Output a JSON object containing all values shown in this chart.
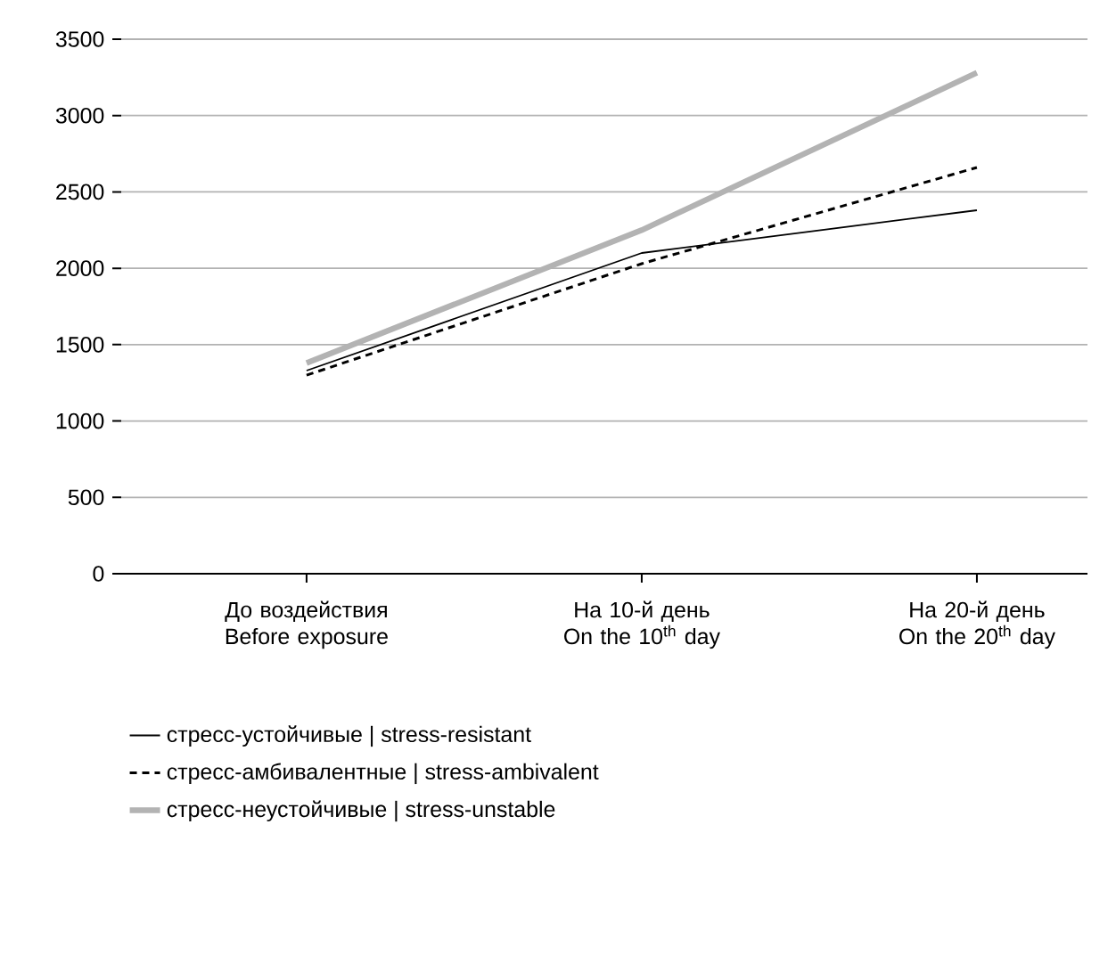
{
  "chart_data": {
    "type": "line",
    "categories": [
      "До воздействия Before exposure",
      "На 10-й день On the 10$^{th}$ day",
      "На 20-й день On the 20$^{th}$ day"
    ],
    "series": [
      {
        "name": "стресс-устойчивые | stress-resistant",
        "color": "#000000",
        "line_style": "solid",
        "values": [
          1330,
          2100,
          2380
        ]
      },
      {
        "name": "стресс-амбивалентные | stress-ambivalent",
        "color": "#000000",
        "line_style": "dashed",
        "values": [
          1300,
          2030,
          2660
        ]
      },
      {
        "name": "стресс-неустойчивые | stress-unstable",
        "color": "#b3b3b3",
        "line_style": "solid",
        "values": [
          1380,
          2250,
          3280
        ]
      }
    ],
    "ylim": [
      0,
      3500
    ],
    "yticks": [
      0,
      500,
      1000,
      1500,
      2000,
      2500,
      3000,
      3500
    ],
    "grid": "y",
    "legend": "bottom",
    "marker": "none"
  }
}
